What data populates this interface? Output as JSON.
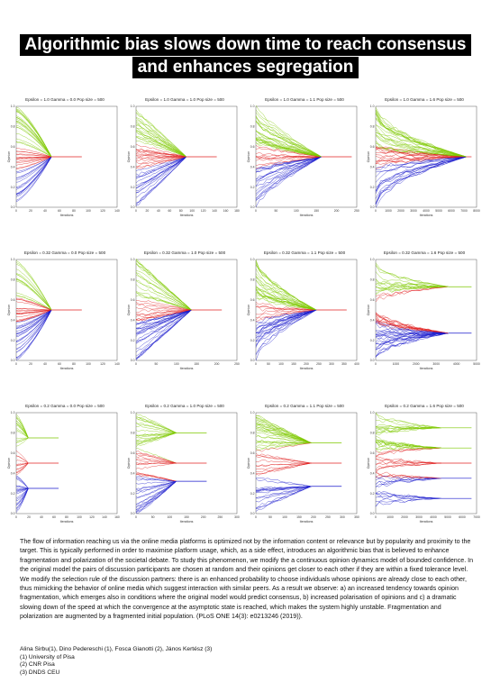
{
  "title_lines": [
    "Algorithmic bias slows down time to reach consensus",
    "and enhances segregation"
  ],
  "panels": [
    {
      "title": "Epsilon = 1.0 Gamma = 0.0 Pop size = 500",
      "xticks": [
        "0",
        "20",
        "40",
        "60",
        "80",
        "100",
        "120",
        "140"
      ],
      "yticks": [
        "0.0",
        "0.2",
        "0.4",
        "0.6",
        "0.8",
        "1.0"
      ],
      "xlabel": "Iterations",
      "ylabel": "Opinion",
      "finals": [
        0.5
      ],
      "spread": 0.12,
      "iters": 0.35
    },
    {
      "title": "Epsilon = 1.0 Gamma = 1.0 Pop size = 500",
      "xticks": [
        "0",
        "20",
        "40",
        "60",
        "80",
        "100",
        "120",
        "140",
        "160",
        "180"
      ],
      "yticks": [
        "0.0",
        "0.2",
        "0.4",
        "0.6",
        "0.8",
        "1.0"
      ],
      "xlabel": "Iterations",
      "ylabel": "Opinion",
      "finals": [
        0.5
      ],
      "spread": 0.45,
      "iters": 0.5
    },
    {
      "title": "Epsilon = 1.0 Gamma = 1.1 Pop size = 500",
      "xticks": [
        "0",
        "50",
        "100",
        "150",
        "200",
        "250"
      ],
      "yticks": [
        "0.0",
        "0.2",
        "0.4",
        "0.6",
        "0.8",
        "1.0"
      ],
      "xlabel": "Iterations",
      "ylabel": "Opinion",
      "finals": [
        0.5
      ],
      "spread": 0.7,
      "iters": 0.65
    },
    {
      "title": "Epsilon = 1.0 Gamma = 1.6 Pop size = 500",
      "xticks": [
        "0",
        "1000",
        "2000",
        "3000",
        "4000",
        "5000",
        "6000",
        "7000",
        "8000"
      ],
      "yticks": [
        "0.0",
        "0.2",
        "0.4",
        "0.6",
        "0.8",
        "1.0"
      ],
      "xlabel": "Iterations",
      "ylabel": "Opinion",
      "finals": [
        0.5
      ],
      "spread": 0.95,
      "iters": 0.9
    },
    {
      "title": "Epsilon = 0.32 Gamma = 0.0 Pop size = 500",
      "xticks": [
        "0",
        "20",
        "40",
        "60",
        "80",
        "100",
        "120",
        "140"
      ],
      "yticks": [
        "0.0",
        "0.2",
        "0.4",
        "0.6",
        "0.8",
        "1.0"
      ],
      "xlabel": "Iterations",
      "ylabel": "Opinion",
      "finals": [
        0.5
      ],
      "spread": 0.15,
      "iters": 0.35
    },
    {
      "title": "Epsilon = 0.32 Gamma = 1.0 Pop size = 500",
      "xticks": [
        "0",
        "50",
        "100",
        "150",
        "200",
        "250"
      ],
      "yticks": [
        "0.0",
        "0.2",
        "0.4",
        "0.6",
        "0.8",
        "1.0"
      ],
      "xlabel": "Iterations",
      "ylabel": "Opinion",
      "finals": [
        0.5
      ],
      "spread": 0.5,
      "iters": 0.55
    },
    {
      "title": "Epsilon = 0.32 Gamma = 1.1 Pop size = 500",
      "xticks": [
        "0",
        "50",
        "100",
        "150",
        "200",
        "250",
        "300",
        "350",
        "400"
      ],
      "yticks": [
        "0.0",
        "0.2",
        "0.4",
        "0.6",
        "0.8",
        "1.0"
      ],
      "xlabel": "Iterations",
      "ylabel": "Opinion",
      "finals": [
        0.5
      ],
      "spread": 0.8,
      "iters": 0.6
    },
    {
      "title": "Epsilon = 0.32 Gamma = 1.6 Pop size = 500",
      "xticks": [
        "0",
        "1000",
        "2000",
        "3000",
        "4000",
        "5000"
      ],
      "yticks": [
        "0.0",
        "0.2",
        "0.4",
        "0.6",
        "0.8",
        "1.0"
      ],
      "xlabel": "Iterations",
      "ylabel": "Opinion",
      "finals": [
        0.73,
        0.27
      ],
      "spread": 0.95,
      "iters": 0.72
    },
    {
      "title": "Epsilon = 0.2 Gamma = 0.0 Pop size = 500",
      "xticks": [
        "0",
        "20",
        "40",
        "60",
        "80",
        "100",
        "120",
        "140",
        "160"
      ],
      "yticks": [
        "0.0",
        "0.2",
        "0.4",
        "0.6",
        "0.8",
        "1.0"
      ],
      "xlabel": "Iterations",
      "ylabel": "Opinion",
      "finals": [
        0.75,
        0.5,
        0.25
      ],
      "spread": 0.15,
      "iters": 0.12
    },
    {
      "title": "Epsilon = 0.2 Gamma = 1.0 Pop size = 500",
      "xticks": [
        "0",
        "50",
        "100",
        "150",
        "200",
        "250",
        "300"
      ],
      "yticks": [
        "0.0",
        "0.2",
        "0.4",
        "0.6",
        "0.8",
        "1.0"
      ],
      "xlabel": "Iterations",
      "ylabel": "Opinion",
      "finals": [
        0.8,
        0.5,
        0.32
      ],
      "spread": 0.35,
      "iters": 0.4
    },
    {
      "title": "Epsilon = 0.2 Gamma = 1.1 Pop size = 500",
      "xticks": [
        "0",
        "50",
        "100",
        "150",
        "200",
        "250",
        "300",
        "350"
      ],
      "yticks": [
        "0.0",
        "0.2",
        "0.4",
        "0.6",
        "0.8",
        "1.0"
      ],
      "xlabel": "Iterations",
      "ylabel": "Opinion",
      "finals": [
        0.7,
        0.5,
        0.27
      ],
      "spread": 0.5,
      "iters": 0.55
    },
    {
      "title": "Epsilon = 0.2 Gamma = 1.6 Pop size = 500",
      "xticks": [
        "0",
        "1000",
        "2000",
        "3000",
        "4000",
        "5000",
        "6000",
        "7000"
      ],
      "yticks": [
        "0.0",
        "0.2",
        "0.4",
        "0.6",
        "0.8",
        "1.0"
      ],
      "xlabel": "Iterations",
      "ylabel": "Opinion",
      "finals": [
        0.85,
        0.65,
        0.5,
        0.35,
        0.15
      ],
      "spread": 0.9,
      "iters": 0.65
    }
  ],
  "colors": {
    "high": "#7ec800",
    "mid": "#e02020",
    "low": "#1a1acc"
  },
  "abstract": "The flow of information reaching us via the online media platforms is optimized not by the information content or relevance but by popularity and proximity to the target. This is typically performed in order to maximise platform usage, which, as a side effect, introduces an algorithmic bias that is believed to enhance fragmentation and polarization of the societal debate. To study this phenomenon, we modify the a continuous opinion dynamics model of bounded confidence. In the original model the pairs of discussion participants are chosen at random and their opinions get closer to each other if they are within a fixed tolerance level. We modify the selection rule of the discussion partners: there is an enhanced probability to choose individuals whose opinions are already close to each other, thus mimicking the behavior of online media which suggest interaction with similar peers. As a result we observe: a) an increased tendency towards opinion fragmentation, which emerges also in conditions where the original model would predict consensus, b) increased polarisation of opinions and c) a dramatic slowing down of the speed at which the convergence at the asymptotic state is reached, which makes the system highly unstable. Fragmentation and polarization are augmented by a fragmented initial population. (PLoS ONE 14(3): e0213246 (2019)).",
  "authors": [
    "Alina Sirbu(1), Dino Pedereschi (1), Fosca Gianotti (2), János Kertész (3)",
    "(1) University of Pisa",
    "(2) CNR Pisa",
    "(3) DNDS CEU"
  ]
}
